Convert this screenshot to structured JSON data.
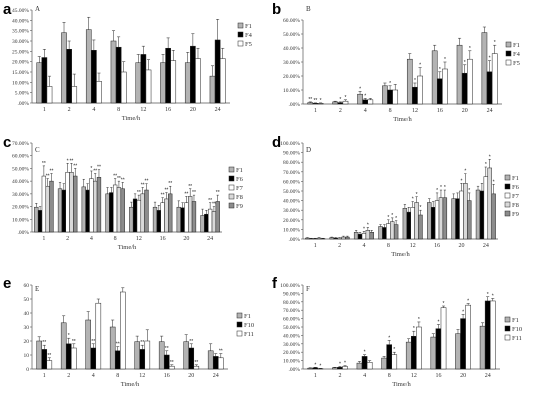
{
  "chart_data": [
    {
      "panel": "a",
      "title": "A",
      "type": "bar",
      "xlabel": "Time/h",
      "categories": [
        "1",
        "2",
        "4",
        "8",
        "12",
        "16",
        "20",
        "24"
      ],
      "ylim": [
        0,
        45
      ],
      "yticks": [
        0,
        5,
        10,
        15,
        20,
        25,
        30,
        35,
        40,
        45
      ],
      "ytick_labels": [
        ".00%",
        "5.00%",
        "10.00%",
        "15.00%",
        "20.00%",
        "25.00%",
        "30.00%",
        "35.00%",
        "40.00%",
        "45.00%"
      ],
      "legend": "right",
      "series": [
        {
          "name": "F1",
          "color": "#b3b3b3",
          "values": [
            19.5,
            34,
            35.5,
            30,
            19.5,
            19.5,
            19.5,
            13
          ],
          "errors": [
            3,
            5,
            6,
            5,
            4,
            4,
            5,
            5
          ]
        },
        {
          "name": "F4",
          "color": "#000000",
          "values": [
            22,
            26,
            25.5,
            27,
            23.5,
            26.5,
            27.5,
            30.5
          ],
          "errors": [
            4,
            4,
            5,
            5,
            4,
            5,
            6,
            10
          ]
        },
        {
          "name": "F5",
          "color": "#ffffff",
          "values": [
            8,
            8,
            10.5,
            15,
            16,
            20.5,
            21.5,
            21.5
          ],
          "errors": [
            5,
            6,
            4,
            5,
            5,
            5,
            5,
            5
          ]
        }
      ],
      "sig": []
    },
    {
      "panel": "b",
      "title": "B",
      "type": "bar",
      "xlabel": "Time/h",
      "categories": [
        "1",
        "2",
        "4",
        "8",
        "12",
        "16",
        "20",
        "24"
      ],
      "ylim": [
        0,
        60
      ],
      "yticks": [
        0,
        10,
        20,
        30,
        40,
        50,
        60
      ],
      "ytick_labels": [
        ".00%",
        "10.00%",
        "20.00%",
        "30.00%",
        "40.00%",
        "50.00%",
        "60.00%"
      ],
      "legend": "right",
      "series": [
        {
          "name": "F1",
          "color": "#b3b3b3",
          "values": [
            1,
            1.5,
            7,
            13,
            32,
            38,
            42,
            51
          ],
          "errors": [
            0.5,
            0.5,
            2,
            2,
            4,
            4,
            5,
            4
          ]
        },
        {
          "name": "F4",
          "color": "#000000",
          "values": [
            0.5,
            1,
            3,
            10,
            12,
            18,
            22,
            23
          ],
          "errors": [
            0.3,
            0.5,
            1,
            3,
            3,
            5,
            6,
            8
          ]
        },
        {
          "name": "F5",
          "color": "#ffffff",
          "values": [
            0.5,
            2,
            3,
            10,
            20,
            25,
            32,
            36
          ],
          "errors": [
            0.3,
            1,
            1,
            4,
            6,
            5,
            6,
            6
          ]
        }
      ],
      "sig": [
        [
          "**",
          "**",
          "*"
        ],
        [
          "",
          "*",
          "*"
        ],
        [
          "*",
          "*",
          ""
        ],
        [
          "",
          "*",
          ""
        ],
        [
          "",
          "*",
          "*"
        ],
        [
          "",
          "*",
          "*"
        ],
        [
          "",
          "*",
          "*"
        ],
        [
          "",
          "*",
          "*"
        ]
      ]
    },
    {
      "panel": "c",
      "title": "C",
      "type": "bar",
      "xlabel": "Time/h",
      "categories": [
        "1",
        "2",
        "4",
        "8",
        "12",
        "16",
        "20",
        "24"
      ],
      "ylim": [
        0,
        70
      ],
      "yticks": [
        0,
        10,
        20,
        30,
        40,
        50,
        60,
        70
      ],
      "ytick_labels": [
        ".00%",
        "10.00%",
        "20.00%",
        "30.00%",
        "40.00%",
        "50.00%",
        "60.00%",
        "70.00%"
      ],
      "legend": "right",
      "series": [
        {
          "name": "F1",
          "color": "#b3b3b3",
          "values": [
            19.5,
            34,
            35.5,
            30,
            19.5,
            19.5,
            19.5,
            13
          ],
          "errors": [
            3,
            5,
            6,
            5,
            4,
            4,
            5,
            5
          ]
        },
        {
          "name": "F6",
          "color": "#000000",
          "values": [
            17,
            33,
            33,
            31,
            26,
            17,
            19,
            14
          ],
          "errors": [
            3,
            5,
            5,
            4,
            4,
            4,
            4,
            3
          ]
        },
        {
          "name": "F7",
          "color": "#ffffff",
          "values": [
            44,
            47,
            42,
            37,
            25,
            23,
            23,
            18
          ],
          "errors": [
            8,
            7,
            6,
            5,
            4,
            4,
            5,
            5
          ]
        },
        {
          "name": "F8",
          "color": "#d9d9d9",
          "values": [
            36,
            47,
            40,
            35,
            30,
            26,
            28,
            16
          ],
          "errors": [
            6,
            7,
            6,
            5,
            5,
            5,
            6,
            4
          ]
        },
        {
          "name": "F9",
          "color": "#8c8c8c",
          "values": [
            40,
            44,
            43,
            34,
            33,
            30,
            24,
            24
          ],
          "errors": [
            6,
            6,
            6,
            5,
            5,
            6,
            5,
            5
          ]
        }
      ],
      "sig": [
        [
          "",
          "",
          "**",
          "**",
          "**"
        ],
        [
          "",
          "",
          "*",
          "**",
          "**"
        ],
        [
          "",
          "",
          "*",
          "**",
          "**"
        ],
        [
          "",
          "",
          "**",
          "**",
          "**"
        ],
        [
          "",
          "",
          "**",
          "**",
          "**"
        ],
        [
          "",
          "",
          "**",
          "**",
          "**"
        ],
        [
          "",
          "",
          "**",
          "**",
          "**"
        ],
        [
          "",
          "",
          "**",
          "**",
          "**"
        ]
      ]
    },
    {
      "panel": "d",
      "title": "D",
      "type": "bar",
      "xlabel": "Time/h",
      "categories": [
        "1",
        "2",
        "4",
        "8",
        "12",
        "16",
        "20",
        "24"
      ],
      "ylim": [
        0,
        100
      ],
      "yticks": [
        0,
        10,
        20,
        30,
        40,
        50,
        60,
        70,
        80,
        90,
        100
      ],
      "ytick_labels": [
        ".00%",
        "10.00%",
        "20.00%",
        "30.00%",
        "40.00%",
        "50.00%",
        "60.00%",
        "70.00%",
        "80.00%",
        "90.00%",
        "100.00%"
      ],
      "legend": "right",
      "series": [
        {
          "name": "F1",
          "color": "#b3b3b3",
          "values": [
            1,
            1.5,
            7,
            13,
            32,
            38,
            42,
            51
          ],
          "errors": [
            0.5,
            0.5,
            2,
            2,
            4,
            4,
            5,
            4
          ]
        },
        {
          "name": "F6",
          "color": "#000000",
          "values": [
            0.5,
            1,
            5,
            12,
            28,
            33,
            42,
            50
          ],
          "errors": [
            0.3,
            0.5,
            2,
            3,
            5,
            6,
            6,
            8
          ]
        },
        {
          "name": "F7",
          "color": "#ffffff",
          "values": [
            0.5,
            1,
            6,
            16,
            33,
            40,
            50,
            65
          ],
          "errors": [
            0.3,
            0.5,
            2,
            4,
            6,
            8,
            8,
            10
          ]
        },
        {
          "name": "F8",
          "color": "#d9d9d9",
          "values": [
            1,
            2,
            9,
            18,
            38,
            43,
            58,
            74
          ],
          "errors": [
            0.5,
            1,
            3,
            4,
            6,
            8,
            10,
            9
          ]
        },
        {
          "name": "F9",
          "color": "#8c8c8c",
          "values": [
            0.5,
            2,
            7,
            15,
            25,
            43,
            40,
            47
          ],
          "errors": [
            0.3,
            1,
            2,
            4,
            5,
            8,
            8,
            10
          ]
        }
      ],
      "sig": [
        [
          "",
          "",
          "",
          "",
          ""
        ],
        [
          "",
          "",
          "",
          "",
          ""
        ],
        [
          "",
          "",
          "*",
          "*",
          ""
        ],
        [
          "",
          "",
          "*",
          "*",
          "*"
        ],
        [
          "",
          "",
          "*",
          "*",
          "*"
        ],
        [
          "",
          "",
          "*",
          "*",
          "*"
        ],
        [
          "",
          "",
          "*",
          "*",
          "*"
        ],
        [
          "",
          "",
          "*",
          "*",
          "*"
        ]
      ]
    },
    {
      "panel": "e",
      "title": "E",
      "type": "bar",
      "xlabel": "Time/h",
      "categories": [
        "1",
        "2",
        "4",
        "8",
        "12",
        "16",
        "20",
        "24"
      ],
      "ylim": [
        0,
        60
      ],
      "yticks": [
        0,
        10,
        20,
        30,
        40,
        50,
        60
      ],
      "ytick_labels": [
        "0",
        "10",
        "20",
        "30",
        "40",
        "50",
        "60"
      ],
      "legend": "right",
      "series": [
        {
          "name": "F1",
          "color": "#b3b3b3",
          "values": [
            20,
            33,
            35,
            30,
            19.5,
            19.5,
            19.5,
            13
          ],
          "errors": [
            3,
            5,
            6,
            5,
            4,
            4,
            5,
            5
          ]
        },
        {
          "name": "F10",
          "color": "#000000",
          "values": [
            14,
            18,
            15,
            13,
            14,
            10,
            15,
            9
          ],
          "errors": [
            3,
            4,
            3,
            3,
            3,
            3,
            3,
            2
          ]
        },
        {
          "name": "F11",
          "color": "#ffffff",
          "values": [
            6,
            15,
            47,
            55,
            20,
            2,
            2,
            8
          ],
          "errors": [
            2,
            3,
            3,
            3,
            8,
            1,
            1,
            3
          ]
        }
      ],
      "sig": [
        [
          "",
          "**",
          "**"
        ],
        [
          "",
          "*",
          "**"
        ],
        [
          "",
          "**",
          ""
        ],
        [
          "",
          "**",
          ""
        ],
        [
          "",
          "**",
          ""
        ],
        [
          "",
          "**",
          "**"
        ],
        [
          "",
          "**",
          "**"
        ],
        [
          "",
          "",
          "**"
        ]
      ]
    },
    {
      "panel": "f",
      "title": "F",
      "type": "bar",
      "xlabel": "Time/h",
      "categories": [
        "1",
        "2",
        "4",
        "8",
        "12",
        "16",
        "20",
        "24"
      ],
      "ylim": [
        0,
        100
      ],
      "yticks": [
        0,
        10,
        20,
        30,
        40,
        50,
        60,
        70,
        80,
        90,
        100
      ],
      "ytick_labels": [
        ".00%",
        "10.00%",
        "20.00%",
        "30.00%",
        "40.00%",
        "50.00%",
        "60.00%",
        "70.00%",
        "80.00%",
        "90.00%",
        "100.00%"
      ],
      "legend": "right",
      "series": [
        {
          "name": "F1",
          "color": "#b3b3b3",
          "values": [
            1,
            1.5,
            7,
            13,
            32,
            38,
            42,
            51
          ],
          "errors": [
            0.5,
            0.5,
            2,
            2,
            4,
            4,
            5,
            4
          ]
        },
        {
          "name": "F10",
          "color": "#000000",
          "values": [
            1.5,
            2,
            15,
            29,
            39,
            48,
            60,
            81
          ],
          "errors": [
            0.5,
            1,
            2,
            5,
            6,
            5,
            5,
            5
          ]
        },
        {
          "name": "F11",
          "color": "#ffffff",
          "values": [
            0.5,
            3,
            8,
            17,
            50,
            73,
            76,
            81
          ],
          "errors": [
            0.3,
            1,
            2,
            3,
            6,
            2,
            2,
            3
          ]
        }
      ],
      "sig": [
        [
          "",
          "*",
          "*"
        ],
        [
          "",
          "*",
          "*"
        ],
        [
          "",
          "*",
          ""
        ],
        [
          "",
          "*",
          "*"
        ],
        [
          "",
          "*",
          "*"
        ],
        [
          "",
          "*",
          "*"
        ],
        [
          "",
          "*",
          "*"
        ],
        [
          "",
          "*",
          "*"
        ]
      ]
    }
  ]
}
